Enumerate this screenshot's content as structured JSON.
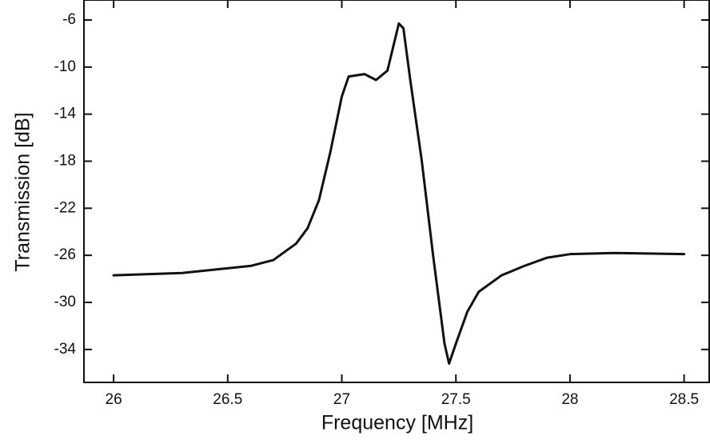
{
  "chart_data": {
    "type": "line",
    "x_label": "Frequency [MHz]",
    "y_label": "Transmission [dB]",
    "x": [
      26,
      26.3,
      26.6,
      26.7,
      26.8,
      26.85,
      26.9,
      26.95,
      27.0,
      27.03,
      27.1,
      27.15,
      27.2,
      27.25,
      27.27,
      27.3,
      27.35,
      27.4,
      27.45,
      27.47,
      27.5,
      27.55,
      27.6,
      27.7,
      27.8,
      27.9,
      28.0,
      28.2,
      28.5
    ],
    "series": [
      {
        "color": "#111111",
        "values": [
          -27.7,
          -27.5,
          -26.9,
          -26.4,
          -25.0,
          -23.7,
          -21.3,
          -17.2,
          -12.5,
          -10.8,
          -10.6,
          -11.1,
          -10.3,
          -6.3,
          -6.7,
          -11.1,
          -17.9,
          -26.0,
          -33.5,
          -35.2,
          -33.5,
          -30.8,
          -29.1,
          -27.7,
          -26.9,
          -26.2,
          -25.9,
          -25.8,
          -25.9
        ]
      }
    ],
    "xlim": [
      25.87,
      28.61
    ],
    "ylim": [
      -36.8,
      -4.3
    ],
    "xticks": [
      26,
      26.5,
      27,
      27.5,
      28,
      28.5
    ],
    "yticks": [
      -6,
      -10,
      -14,
      -18,
      -22,
      -26,
      -30,
      -34
    ],
    "grid": false
  }
}
